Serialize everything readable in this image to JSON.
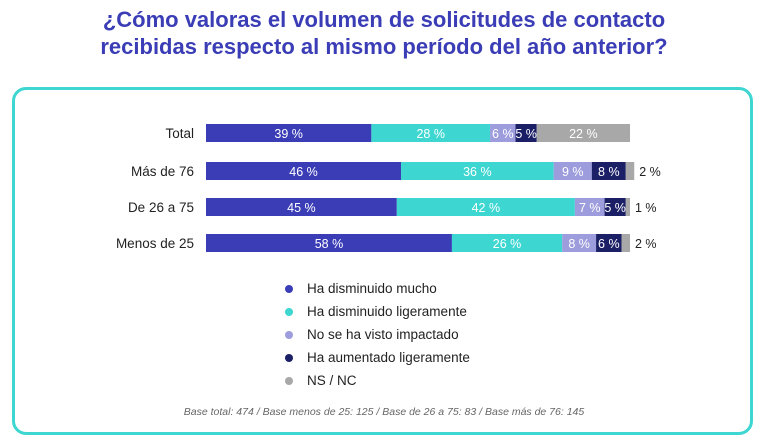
{
  "title_line1": "¿Cómo valoras el volumen de solicitudes de contacto",
  "title_line2": "recibidas respecto al mismo período del año anterior?",
  "footnote": "Base total: 474 / Base menos de 25: 125 / Base de 26 a 75: 83 / Base más de 76: 145",
  "chart_data": {
    "type": "bar",
    "orientation": "horizontal",
    "stacked": true,
    "categories": [
      "Total",
      "Más de 76",
      "De 26 a 75",
      "Menos de 25"
    ],
    "series": [
      {
        "name": "Ha disminuido mucho",
        "color": "#3a3db5",
        "values": [
          39,
          46,
          45,
          58
        ]
      },
      {
        "name": "Ha disminuido ligeramente",
        "color": "#3ed6d1",
        "values": [
          28,
          36,
          42,
          26
        ]
      },
      {
        "name": "No se ha visto impactado",
        "color": "#9d9cdc",
        "values": [
          6,
          9,
          7,
          8
        ]
      },
      {
        "name": "Ha aumentado ligeramente",
        "color": "#1b1f66",
        "values": [
          5,
          8,
          5,
          6
        ]
      },
      {
        "name": "NS / NC",
        "color": "#a8a8a8",
        "values": [
          22,
          2,
          1,
          2
        ]
      }
    ],
    "value_suffix": " %",
    "legend_position": "bottom"
  }
}
